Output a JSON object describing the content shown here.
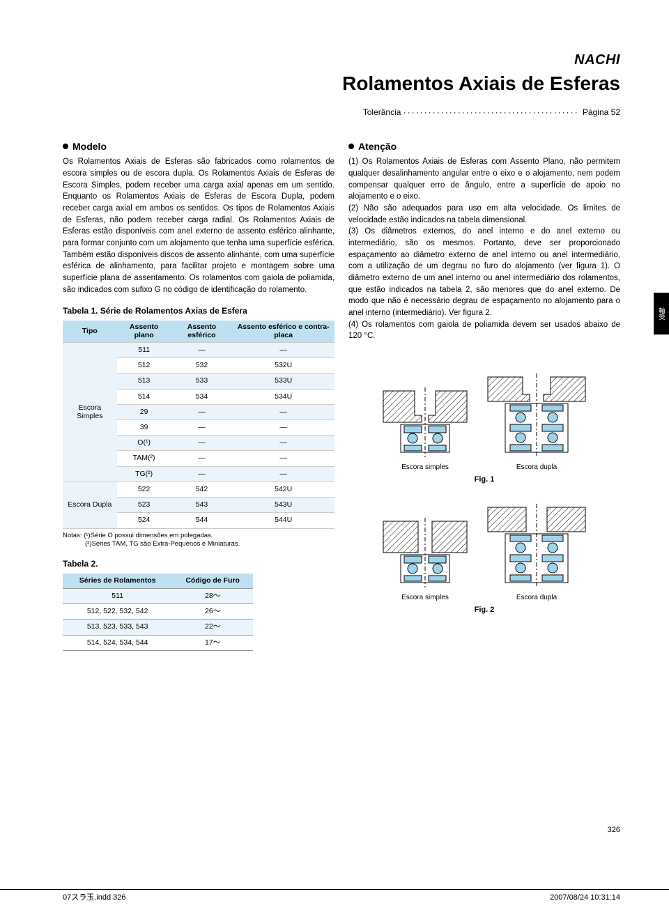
{
  "brand": "NACHI",
  "main_title": "Rolamentos Axiais de Esferas",
  "tolerance_label": "Tolerância",
  "tolerance_page": "Página 52",
  "left": {
    "heading": "Modelo",
    "paragraph": "Os Rolamentos Axiais de Esferas são fabricados como rolamentos de escora simples ou de escora dupla. Os Rolamentos Axiais de Esferas de Escora Simples, podem receber uma carga axial apenas em um sentido. Enquanto os Rolamentos Axiais de Esferas de Escora Dupla, podem receber carga axial em ambos os sentidos. Os tipos de Rolamentos Axiais de Esferas, não podem receber carga radial. Os Rolamentos Axiais de Esferas estão disponíveis com anel externo de assento esférico alinhante, para formar conjunto com um alojamento que tenha uma superfície esférica. Também estão disponíveis discos de assento alinhante, com uma superfície esférica de alinhamento, para facilitar projeto e montagem sobre uma superfície plana de assentamento. Os rolamentos com gaiola de poliamida, são indicados com sufixo G no código de identificação do rolamento."
  },
  "right": {
    "heading": "Atenção",
    "items": [
      "(1) Os Rolamentos Axiais de Esferas com Assento Plano, não permitem qualquer desalinhamento angular entre o eixo e o alojamento, nem podem compensar qualquer erro de ângulo, entre a superfície de apoio no alojamento e o eixo.",
      "(2) Não são adequados para uso em alta velocidade. Os limites de velocidade estão indicados na tabela dimensional.",
      "(3) Os diâmetros externos, do anel interno e do anel externo ou intermediário, são os mesmos. Portanto, deve ser proporcionado espaçamento ao diâmetro externo de anel interno ou anel intermediário, com a utilização de um degrau no furo do alojamento (ver figura 1). O diâmetro externo de um anel interno ou anel intermediário dos rolamentos, que estão indicados na tabela 2, são menores que do anel externo. De modo que não é necessário degrau de espaçamento no alojamento para o anel interno (intermediário). Ver figura 2.",
      "(4) Os rolamentos com gaiola de poliamida devem ser usados abaixo de 120 °C."
    ]
  },
  "table1": {
    "caption": "Tabela 1. Série de Rolamentos Axias de Esfera",
    "headers": [
      "Tipo",
      "Assento plano",
      "Assento esférico",
      "Assento esférico e contra-placa"
    ],
    "groups": [
      {
        "type_label": "Escora Simples",
        "rows": [
          [
            "511",
            "—",
            "—"
          ],
          [
            "512",
            "532",
            "532U"
          ],
          [
            "513",
            "533",
            "533U"
          ],
          [
            "514",
            "534",
            "534U"
          ],
          [
            "29",
            "—",
            "—"
          ],
          [
            "39",
            "—",
            "—"
          ],
          [
            "O(¹)",
            "—",
            "—"
          ],
          [
            "TAM(²)",
            "—",
            "—"
          ],
          [
            "TG(²)",
            "—",
            "—"
          ]
        ]
      },
      {
        "type_label": "Escora Dupla",
        "rows": [
          [
            "522",
            "542",
            "542U"
          ],
          [
            "523",
            "543",
            "543U"
          ],
          [
            "524",
            "544",
            "544U"
          ]
        ]
      }
    ],
    "notes": [
      "Notas: (¹)Série O possui dimensões em polegadas.",
      "(²)Séries TAM, TG são Extra-Pequenos e Miniaturas."
    ]
  },
  "table2": {
    "caption": "Tabela 2.",
    "headers": [
      "Séries de Rolamentos",
      "Código de Furo"
    ],
    "rows": [
      [
        "511",
        "28～"
      ],
      [
        "512, 522, 532, 542",
        "26～"
      ],
      [
        "513, 523, 533, 543",
        "22～"
      ],
      [
        "514, 524, 534, 544",
        "17～"
      ]
    ]
  },
  "figures": {
    "fig1": {
      "left_caption": "Escora simples",
      "right_caption": "Escora dupla",
      "label": "Fig. 1"
    },
    "fig2": {
      "left_caption": "Escora simples",
      "right_caption": "Escora dupla",
      "label": "Fig. 2"
    }
  },
  "side_tab": "軸受",
  "page_number": "326",
  "footer": {
    "left": "07スラ玉.indd   326",
    "right": "2007/08/24   10:31:14"
  },
  "colors": {
    "header_bg": "#bfe0f0",
    "row_alt_bg": "#eaf4fa",
    "bearing_fill": "#9fd2eb",
    "hatch": "#000000"
  }
}
